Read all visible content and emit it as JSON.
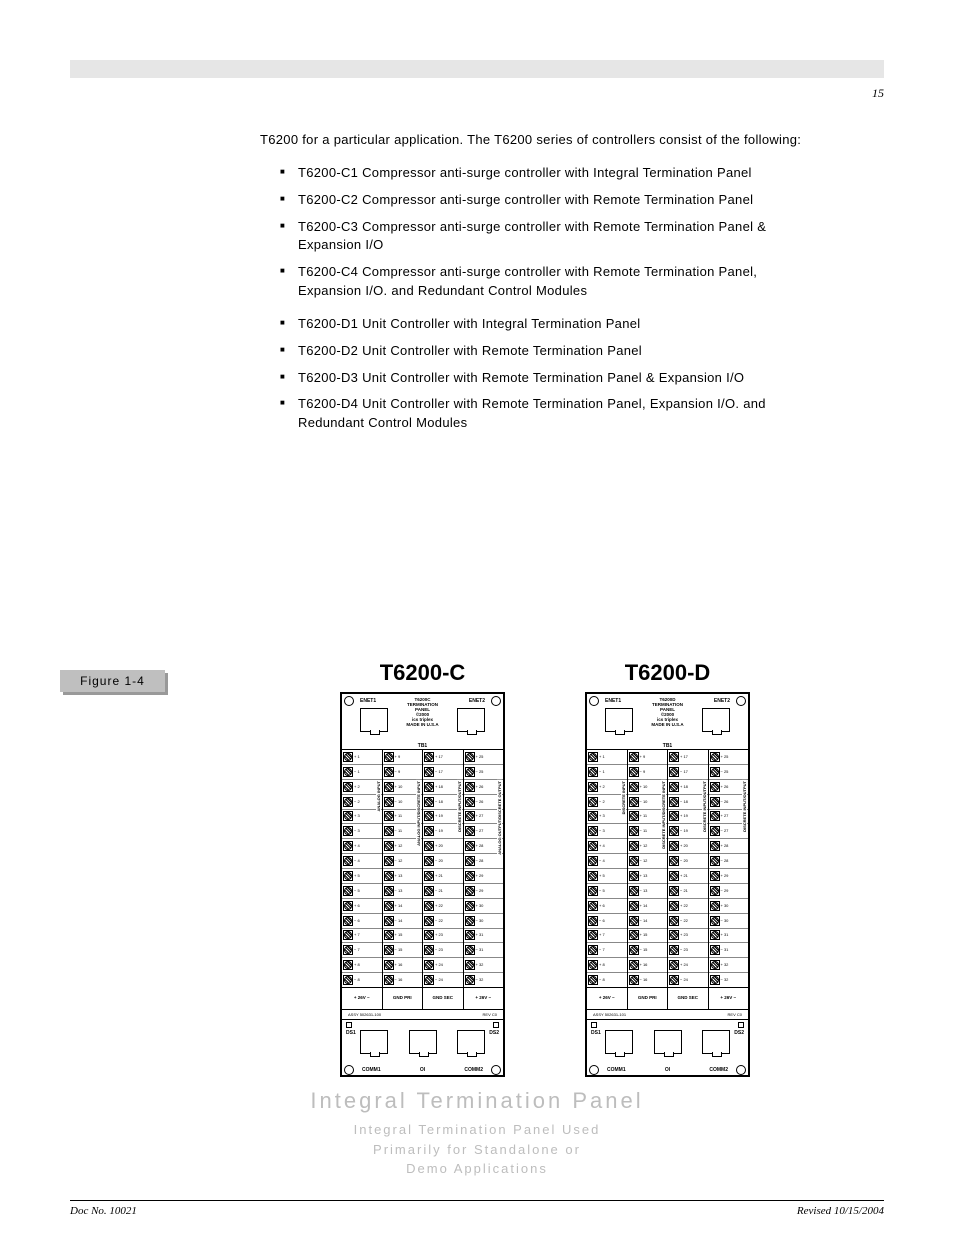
{
  "page": {
    "top_right_num": "15",
    "footer_left": "Doc No. 10021",
    "footer_right": "Revised 10/15/2004"
  },
  "body": {
    "intro": "T6200 for a particular application. The T6200 series of controllers consist of the following:",
    "groupA": [
      "T6200-C1 Compressor anti-surge controller with Integral Termination Panel",
      "T6200-C2 Compressor anti-surge controller with Remote Termination Panel",
      "T6200-C3 Compressor anti-surge controller with Remote Termination Panel & Expansion I/O",
      "T6200-C4 Compressor anti-surge controller with Remote Termination Panel, Expansion I/O. and Redundant Control Modules"
    ],
    "groupB": [
      "T6200-D1 Unit Controller with Integral Termination Panel",
      "T6200-D2 Unit Controller with Remote Termination Panel",
      "T6200-D3 Unit Controller with Remote Termination Panel & Expansion I/O",
      "T6200-D4 Unit Controller with Remote Termination Panel, Expansion I/O. and Redundant Control Modules"
    ]
  },
  "figure": {
    "label": "Figure 1-4",
    "caption_title": "Integral Termination Panel",
    "caption_sub1": "Integral Termination Panel Used",
    "caption_sub2": "Primarily for Standalone or",
    "caption_sub3": "Demo Applications",
    "panels": [
      {
        "title": "T6200-C",
        "header_model": "T6200C",
        "header_lines": [
          "TERMINATION",
          "PANEL",
          "©2000",
          "ics triplex",
          "MADE IN U.S.A"
        ],
        "enet_l": "ENET1",
        "enet_r": "ENET2",
        "tb": "TB1",
        "col_vtext": [
          "ANALOG INPUT",
          "ANALOG INPUT/DISCRETE INPUT",
          "DISCRETE INPUT/OUTPUT",
          "ANALOG OUTPUT/DISCRETE OUTPUT"
        ],
        "col_ranges": [
          [
            1,
            8
          ],
          [
            9,
            16
          ],
          [
            17,
            24
          ],
          [
            25,
            32
          ]
        ],
        "pwr": [
          "+ 26V −",
          "GND PRI",
          "GND SEC",
          "+ 26V −"
        ],
        "assy": "ASSY 502631-100",
        "rev": "REV  C0",
        "ds_l": "DS1",
        "ds_r": "DS2",
        "comm": [
          "COMM1",
          "OI",
          "COMM2"
        ]
      },
      {
        "title": "T6200-D",
        "header_model": "T6200D",
        "header_lines": [
          "TERMINATION",
          "PANEL",
          "©2000",
          "ics triplex",
          "MADE IN U.S.A"
        ],
        "enet_l": "ENET1",
        "enet_r": "ENET2",
        "tb": "TB1",
        "col_vtext": [
          "DISCRETE INPUT",
          "DISCRETE INPUT/DISCRETE INPUT",
          "DISCRETE INPUT/OUTPUT",
          "DISCRETE INPUT/OUTPUT"
        ],
        "col_ranges": [
          [
            1,
            8
          ],
          [
            9,
            16
          ],
          [
            17,
            24
          ],
          [
            25,
            32
          ]
        ],
        "pwr": [
          "+ 26V −",
          "GND PRI",
          "GND SEC",
          "+ 26V −"
        ],
        "assy": "ASSY 502631-101",
        "rev": "REV  C0",
        "ds_l": "DS1",
        "ds_r": "DS2",
        "comm": [
          "COMM1",
          "OI",
          "COMM2"
        ]
      }
    ]
  },
  "style": {
    "topbar_bg": "#e6e6e6",
    "figure_label_bg": "#bfbfbf",
    "figure_label_shadow": "#999999",
    "caption_gray": "#bdbdbd",
    "text_color": "#000000",
    "page_bg": "#ffffff"
  }
}
